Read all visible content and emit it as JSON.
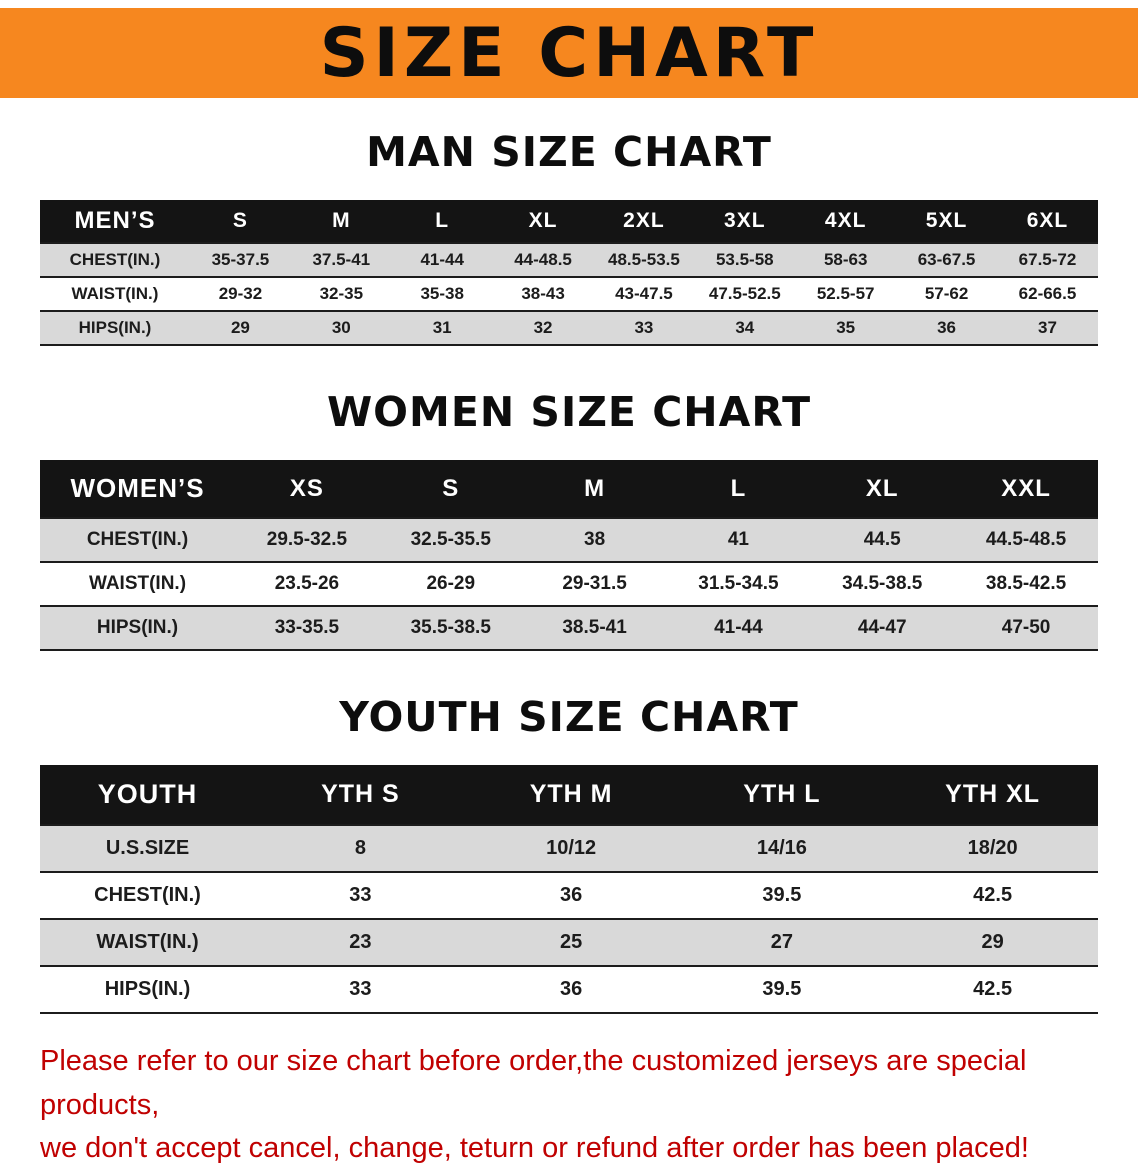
{
  "banner": {
    "title": "SIZE CHART"
  },
  "sections": [
    {
      "heading": "MAN SIZE CHART",
      "table": {
        "header": [
          "MEN’S",
          "S",
          "M",
          "L",
          "XL",
          "2XL",
          "3XL",
          "4XL",
          "5XL",
          "6XL"
        ],
        "rows": [
          [
            "CHEST(IN.)",
            "35-37.5",
            "37.5-41",
            "41-44",
            "44-48.5",
            "48.5-53.5",
            "53.5-58",
            "58-63",
            "63-67.5",
            "67.5-72"
          ],
          [
            "WAIST(IN.)",
            "29-32",
            "32-35",
            "35-38",
            "38-43",
            "43-47.5",
            "47.5-52.5",
            "52.5-57",
            "57-62",
            "62-66.5"
          ],
          [
            "HIPS(IN.)",
            "29",
            "30",
            "31",
            "32",
            "33",
            "34",
            "35",
            "36",
            "37"
          ]
        ]
      }
    },
    {
      "heading": "WOMEN SIZE CHART",
      "table": {
        "header": [
          "WOMEN’S",
          "XS",
          "S",
          "M",
          "L",
          "XL",
          "XXL"
        ],
        "rows": [
          [
            "CHEST(IN.)",
            "29.5-32.5",
            "32.5-35.5",
            "38",
            "41",
            "44.5",
            "44.5-48.5"
          ],
          [
            "WAIST(IN.)",
            "23.5-26",
            "26-29",
            "29-31.5",
            "31.5-34.5",
            "34.5-38.5",
            "38.5-42.5"
          ],
          [
            "HIPS(IN.)",
            "33-35.5",
            "35.5-38.5",
            "38.5-41",
            "41-44",
            "44-47",
            "47-50"
          ]
        ]
      }
    },
    {
      "heading": "YOUTH SIZE CHART",
      "table": {
        "header": [
          "YOUTH",
          "YTH S",
          "YTH M",
          "YTH L",
          "YTH XL"
        ],
        "rows": [
          [
            "U.S.SIZE",
            "8",
            "10/12",
            "14/16",
            "18/20"
          ],
          [
            "CHEST(IN.)",
            "33",
            "36",
            "39.5",
            "42.5"
          ],
          [
            "WAIST(IN.)",
            "23",
            "25",
            "27",
            "29"
          ],
          [
            "HIPS(IN.)",
            "33",
            "36",
            "39.5",
            "42.5"
          ]
        ]
      }
    }
  ],
  "footer": {
    "line1": "Please refer to our size chart before order,the customized jerseys are special products,",
    "line2": "we don't accept cancel, change, teturn or refund after order has been placed!"
  },
  "colors": {
    "banner_bg": "#F6871F",
    "header_bg": "#141414",
    "stripe_bg": "#D9D9D9",
    "footer_red": "#C00101"
  }
}
